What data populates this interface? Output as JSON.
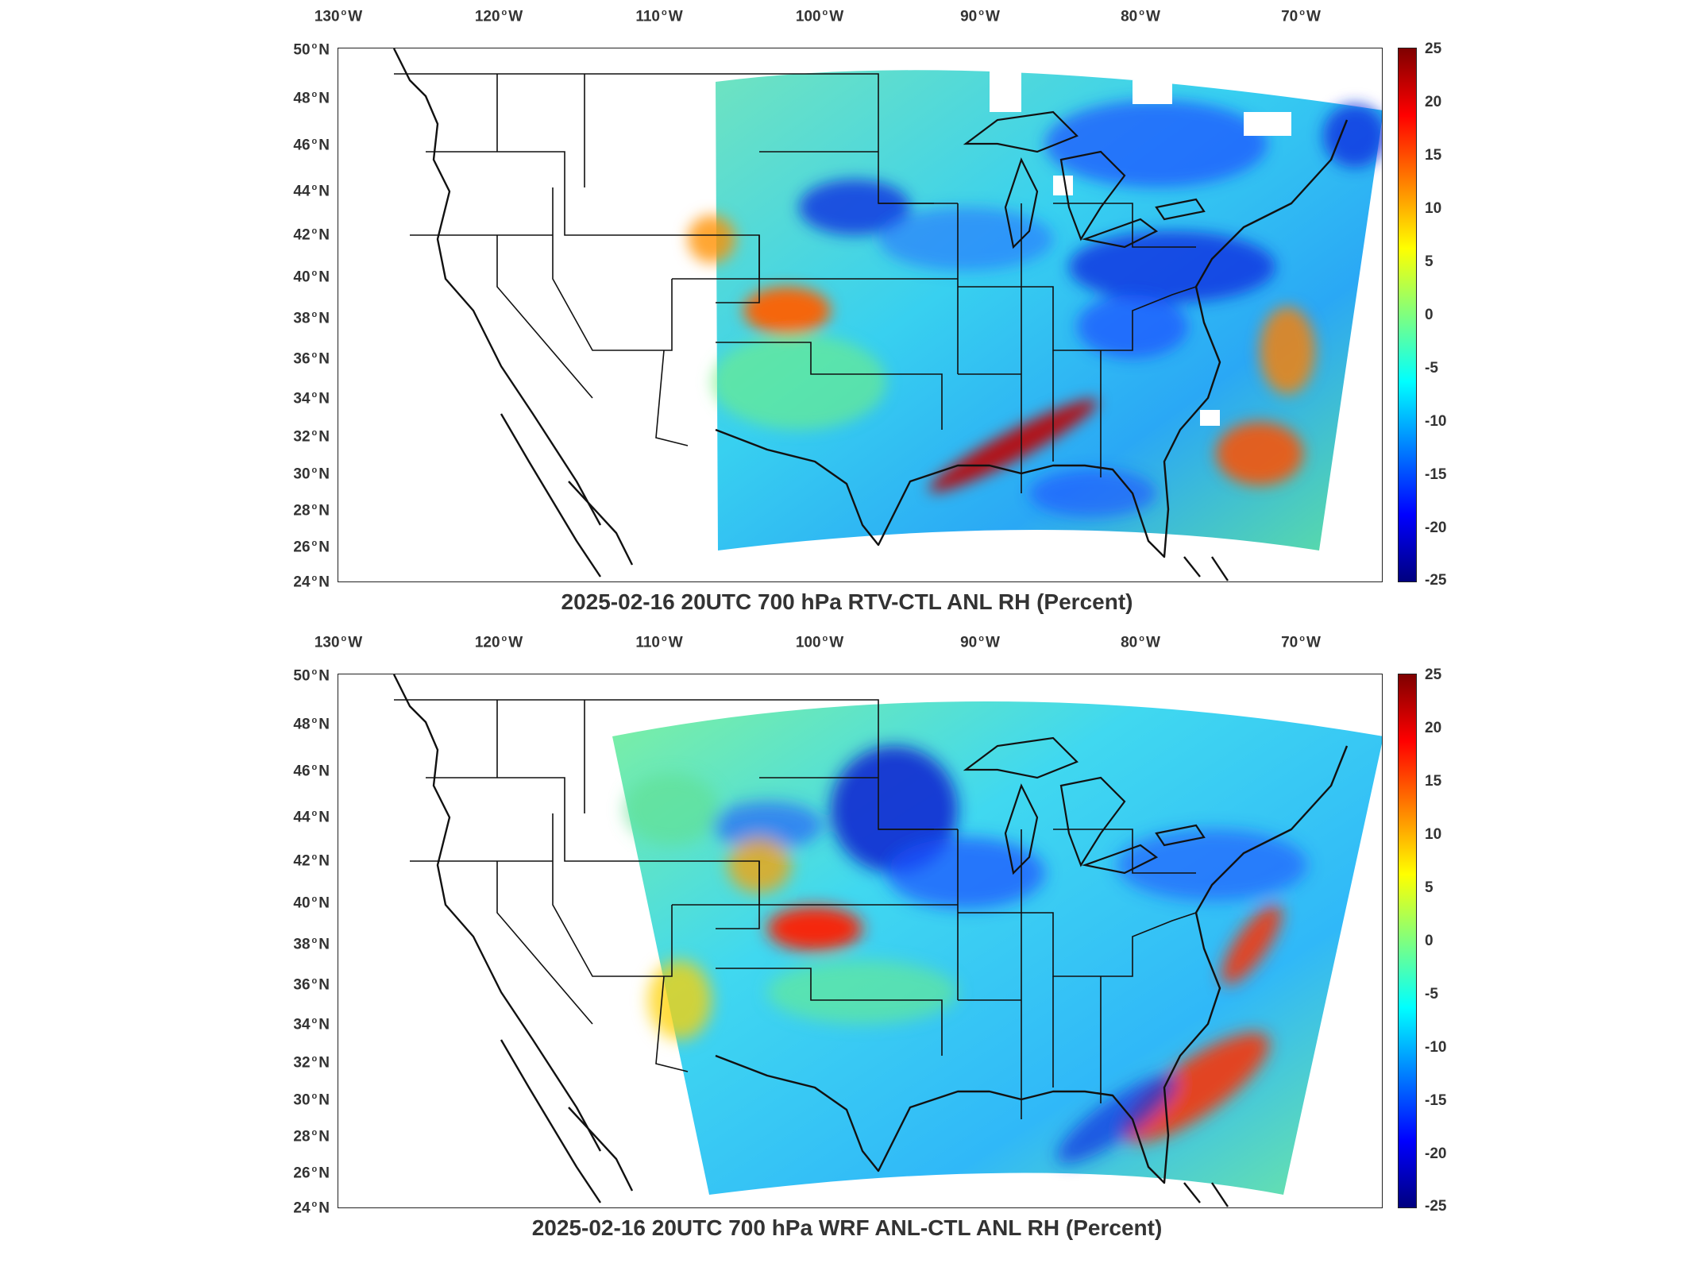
{
  "panels": [
    {
      "id": "rtv",
      "title": "2025-02-16 20UTC 700 hPa RTV-CTL ANL RH (Percent)",
      "lon_ticks": [
        "130",
        "120",
        "110",
        "100",
        "90",
        "80",
        "70"
      ],
      "lon_suffix": "W",
      "lat_ticks": [
        "50",
        "48",
        "46",
        "44",
        "42",
        "40",
        "38",
        "36",
        "34",
        "32",
        "30",
        "28",
        "26",
        "24"
      ],
      "lat_suffix": "N",
      "colorbar_ticks": [
        "25",
        "20",
        "15",
        "10",
        "5",
        "0",
        "-5",
        "-10",
        "-15",
        "-20",
        "-25"
      ]
    },
    {
      "id": "wrf",
      "title": "2025-02-16 20UTC 700 hPa WRF ANL-CTL ANL RH (Percent)",
      "lon_ticks": [
        "130",
        "120",
        "110",
        "100",
        "90",
        "80",
        "70"
      ],
      "lon_suffix": "W",
      "lat_ticks": [
        "50",
        "48",
        "46",
        "44",
        "42",
        "40",
        "38",
        "36",
        "34",
        "32",
        "30",
        "28",
        "26",
        "24"
      ],
      "lat_suffix": "N",
      "colorbar_ticks": [
        "25",
        "20",
        "15",
        "10",
        "5",
        "0",
        "-5",
        "-10",
        "-15",
        "-20",
        "-25"
      ]
    }
  ],
  "colormap": {
    "name": "jet",
    "range": [
      -25,
      25
    ],
    "colors": [
      "#00007f",
      "#0000ff",
      "#007fff",
      "#00ffff",
      "#7fff7f",
      "#ffff00",
      "#ff7f00",
      "#ff0000",
      "#7f0000"
    ]
  }
}
